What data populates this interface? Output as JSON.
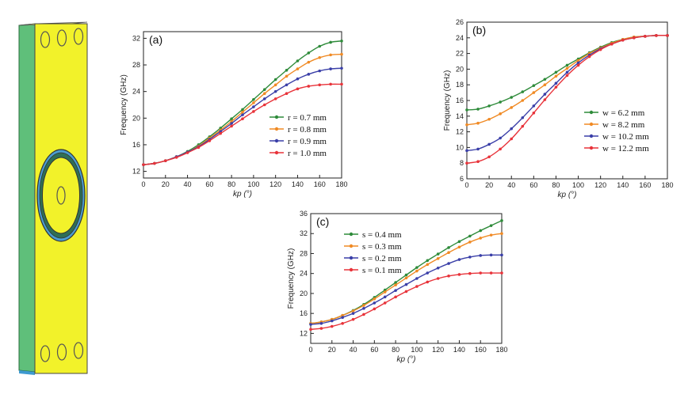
{
  "colors": {
    "green": "#2e8b3a",
    "orange": "#f08a24",
    "blue": "#3a3fa8",
    "red": "#e8333a",
    "yellow": "#f2f22a",
    "panel": "#5fbf7a"
  },
  "chart_data": [
    {
      "id": "a",
      "type": "line",
      "panel_label": "(a)",
      "xlabel": "kp (°)",
      "ylabel": "Frequency (GHz)",
      "xlim": [
        0,
        180
      ],
      "ylim": [
        11,
        33
      ],
      "xticks": [
        "0",
        "20",
        "40",
        "60",
        "80",
        "100",
        "120",
        "140",
        "160",
        "180"
      ],
      "yticks": [
        "12",
        "16",
        "20",
        "24",
        "28",
        "32"
      ],
      "x": [
        0,
        10,
        20,
        30,
        40,
        50,
        60,
        70,
        80,
        90,
        100,
        110,
        120,
        130,
        140,
        150,
        160,
        170,
        180
      ],
      "legend": "right",
      "series": [
        {
          "name": "r = 0.7 mm",
          "color": "#2e8b3a",
          "values": [
            13.0,
            13.2,
            13.6,
            14.2,
            15.0,
            16.0,
            17.2,
            18.5,
            19.9,
            21.3,
            22.8,
            24.3,
            25.8,
            27.2,
            28.6,
            29.8,
            30.8,
            31.4,
            31.6
          ]
        },
        {
          "name": "r = 0.8 mm",
          "color": "#f08a24",
          "values": [
            13.0,
            13.2,
            13.6,
            14.2,
            14.9,
            15.8,
            17.0,
            18.2,
            19.5,
            20.9,
            22.3,
            23.7,
            25.0,
            26.3,
            27.4,
            28.4,
            29.1,
            29.5,
            29.6
          ]
        },
        {
          "name": "r = 0.9 mm",
          "color": "#3a3fa8",
          "values": [
            13.0,
            13.2,
            13.6,
            14.2,
            14.9,
            15.7,
            16.8,
            18.0,
            19.2,
            20.5,
            21.7,
            22.9,
            24.0,
            25.0,
            25.9,
            26.6,
            27.1,
            27.4,
            27.5
          ]
        },
        {
          "name": "r = 1.0 mm",
          "color": "#e8333a",
          "values": [
            13.0,
            13.2,
            13.6,
            14.1,
            14.8,
            15.6,
            16.6,
            17.7,
            18.8,
            19.9,
            21.0,
            22.0,
            22.9,
            23.7,
            24.4,
            24.8,
            25.0,
            25.1,
            25.1
          ]
        }
      ]
    },
    {
      "id": "b",
      "type": "line",
      "panel_label": "(b)",
      "xlabel": "kp (°)",
      "ylabel": "Frequency (GHz)",
      "xlim": [
        0,
        180
      ],
      "ylim": [
        6,
        26
      ],
      "xticks": [
        "0",
        "20",
        "40",
        "60",
        "80",
        "100",
        "120",
        "140",
        "160",
        "180"
      ],
      "yticks": [
        "6",
        "8",
        "10",
        "12",
        "14",
        "16",
        "18",
        "20",
        "22",
        "24",
        "26"
      ],
      "x": [
        0,
        10,
        20,
        30,
        40,
        50,
        60,
        70,
        80,
        90,
        100,
        110,
        120,
        130,
        140,
        150,
        160,
        170,
        180
      ],
      "legend": "right",
      "series": [
        {
          "name": "w = 6.2 mm",
          "color": "#2e8b3a",
          "values": [
            14.8,
            14.9,
            15.3,
            15.8,
            16.4,
            17.1,
            17.9,
            18.7,
            19.6,
            20.5,
            21.3,
            22.1,
            22.8,
            23.4,
            23.8,
            24.1,
            24.2,
            24.3,
            24.3
          ]
        },
        {
          "name": "w = 8.2 mm",
          "color": "#f08a24",
          "values": [
            12.9,
            13.1,
            13.6,
            14.3,
            15.1,
            16.0,
            17.0,
            18.0,
            19.1,
            20.1,
            21.1,
            22.0,
            22.7,
            23.3,
            23.8,
            24.1,
            24.2,
            24.3,
            24.3
          ]
        },
        {
          "name": "w = 10.2 mm",
          "color": "#3a3fa8",
          "values": [
            9.6,
            9.8,
            10.4,
            11.2,
            12.4,
            13.8,
            15.3,
            16.8,
            18.2,
            19.6,
            20.8,
            21.8,
            22.6,
            23.2,
            23.7,
            24.0,
            24.2,
            24.3,
            24.3
          ]
        },
        {
          "name": "w = 12.2 mm",
          "color": "#e8333a",
          "values": [
            8.0,
            8.2,
            8.8,
            9.8,
            11.1,
            12.7,
            14.4,
            16.1,
            17.7,
            19.2,
            20.5,
            21.6,
            22.5,
            23.2,
            23.7,
            24.0,
            24.2,
            24.3,
            24.3
          ]
        }
      ]
    },
    {
      "id": "c",
      "type": "line",
      "panel_label": "(c)",
      "xlabel": "kp (°)",
      "ylabel": "Frequency (GHz)",
      "xlim": [
        0,
        180
      ],
      "ylim": [
        10,
        36
      ],
      "xticks": [
        "0",
        "20",
        "40",
        "60",
        "80",
        "100",
        "120",
        "140",
        "160",
        "180"
      ],
      "yticks": [
        "12",
        "16",
        "20",
        "24",
        "28",
        "32",
        "36"
      ],
      "x": [
        0,
        10,
        20,
        30,
        40,
        50,
        60,
        70,
        80,
        90,
        100,
        110,
        120,
        130,
        140,
        150,
        160,
        170,
        180
      ],
      "legend": "top-left",
      "series": [
        {
          "name": "s = 0.4 mm",
          "color": "#2e8b3a",
          "values": [
            14.0,
            14.3,
            14.8,
            15.6,
            16.6,
            17.8,
            19.2,
            20.7,
            22.2,
            23.7,
            25.2,
            26.6,
            27.9,
            29.2,
            30.4,
            31.5,
            32.6,
            33.6,
            34.6
          ]
        },
        {
          "name": "s = 0.3 mm",
          "color": "#f08a24",
          "values": [
            14.0,
            14.3,
            14.8,
            15.6,
            16.5,
            17.6,
            18.9,
            20.3,
            21.7,
            23.1,
            24.5,
            25.8,
            27.0,
            28.2,
            29.3,
            30.3,
            31.1,
            31.7,
            32.0
          ]
        },
        {
          "name": "s = 0.2 mm",
          "color": "#3a3fa8",
          "values": [
            13.8,
            14.0,
            14.5,
            15.2,
            16.0,
            17.0,
            18.1,
            19.3,
            20.6,
            21.8,
            23.0,
            24.1,
            25.1,
            26.0,
            26.8,
            27.3,
            27.6,
            27.7,
            27.7
          ]
        },
        {
          "name": "s = 0.1 mm",
          "color": "#e8333a",
          "values": [
            12.8,
            13.0,
            13.4,
            14.0,
            14.8,
            15.8,
            16.9,
            18.1,
            19.3,
            20.4,
            21.4,
            22.3,
            23.0,
            23.5,
            23.8,
            24.0,
            24.1,
            24.1,
            24.1
          ]
        }
      ]
    }
  ]
}
